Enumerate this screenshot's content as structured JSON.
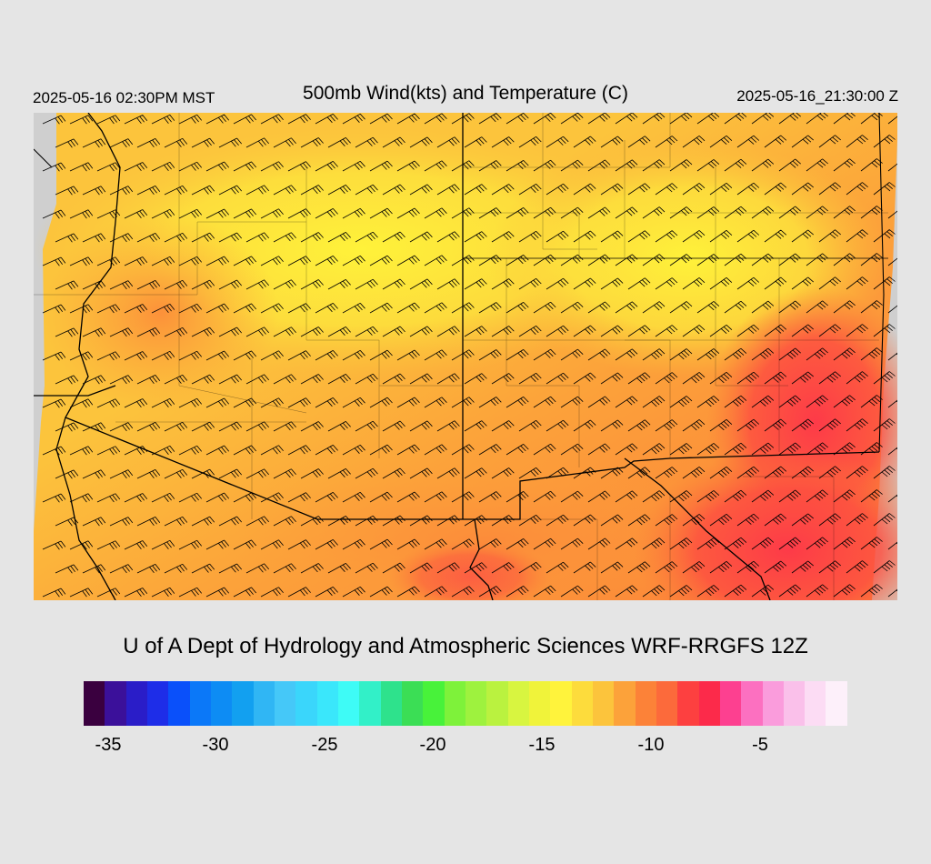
{
  "header": {
    "local_time": "2025-05-16 02:30PM MST",
    "title": "500mb Wind(kts) and Temperature (C)",
    "valid_time": "2025-05-16_21:30:00 Z"
  },
  "credit": "U of A Dept of Hydrology and Atmospheric Sciences WRF-RRGFS 12Z",
  "colorbar": {
    "colors": [
      "#3a003f",
      "#3b109a",
      "#2a1dc8",
      "#1e2de8",
      "#0a50fa",
      "#0b78f8",
      "#0d8cf4",
      "#12a0f0",
      "#30b6f4",
      "#45c8f8",
      "#3ad6fb",
      "#3ae7fb",
      "#3efbf6",
      "#32f0c8",
      "#2ee28c",
      "#3bde55",
      "#48f23a",
      "#7ef23a",
      "#9ef23e",
      "#baf23f",
      "#d8f540",
      "#f0f33a",
      "#fff33c",
      "#fddc3c",
      "#fcc43c",
      "#fca23a",
      "#fc8238",
      "#fc6a3b",
      "#fd4040",
      "#fc2a4a",
      "#fd4090",
      "#fc70c0",
      "#fa9cdc",
      "#fac0ea",
      "#fcdcf4",
      "#fdf0fa"
    ],
    "tick_labels": [
      "-35",
      "-30",
      "-25",
      "-20",
      "-15",
      "-10",
      "-5"
    ]
  },
  "map": {
    "field": "500mb temperature (C) with wind barbs (kts)",
    "palette": {
      "cool": "#fdf03e",
      "mid": "#fcc43c",
      "warm": "#fc9a3a",
      "hot": "#fd4a4a",
      "offgrid": "#cfcfcf"
    }
  }
}
